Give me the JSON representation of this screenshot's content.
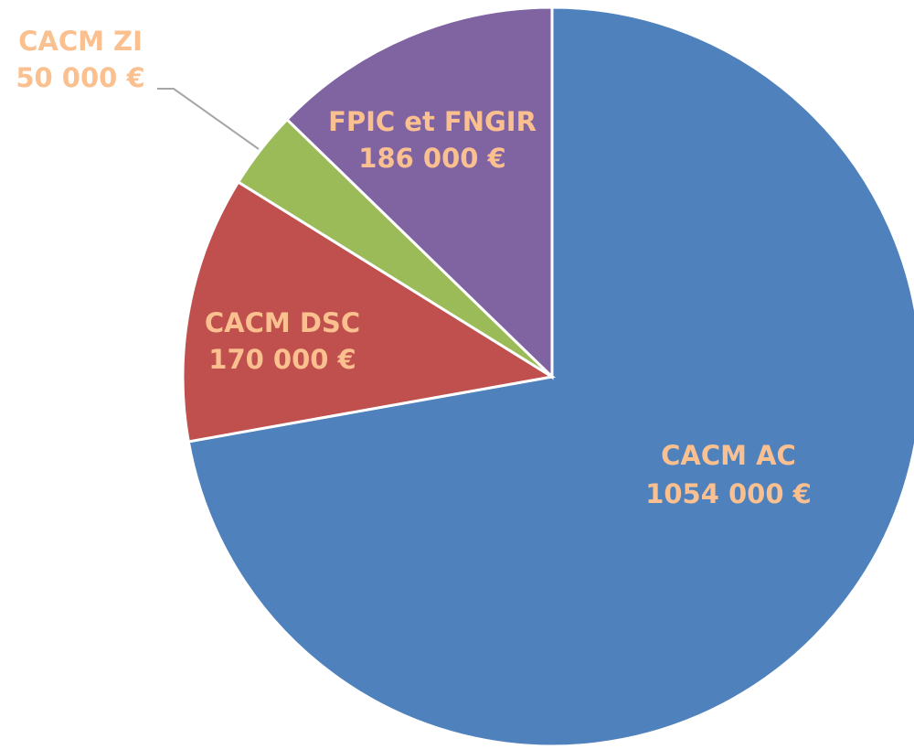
{
  "chart_data": {
    "type": "pie",
    "categories": [
      "CACM AC",
      "CACM DSC",
      "CACM ZI",
      "FPIC et FNGIR"
    ],
    "values": [
      1054000,
      170000,
      50000,
      186000
    ],
    "value_labels": [
      "1054 000 €",
      "170 000 €",
      "50 000 €",
      "186 000 €"
    ],
    "colors": [
      "#4f81bd",
      "#c0504d",
      "#9bbb59",
      "#8064a2"
    ]
  }
}
